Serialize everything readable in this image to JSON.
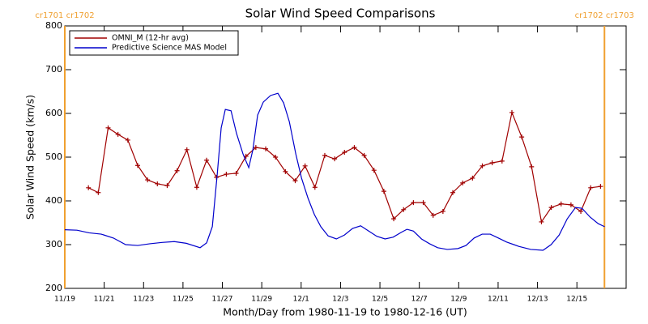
{
  "chart_data": {
    "type": "line",
    "title": "Solar Wind Speed Comparisons",
    "x_label": "Month/Day from 1980-11-19 to 1980-12-16 (UT)",
    "y_label": "Solar Wind Speed (km/s)",
    "xlim": [
      0,
      28.5
    ],
    "ylim": [
      200,
      800
    ],
    "xticks": [
      {
        "value": 0,
        "label": "11/19"
      },
      {
        "value": 2,
        "label": "11/21"
      },
      {
        "value": 4,
        "label": "11/23"
      },
      {
        "value": 6,
        "label": "11/25"
      },
      {
        "value": 8,
        "label": "11/27"
      },
      {
        "value": 10,
        "label": "11/29"
      },
      {
        "value": 12,
        "label": "12/1"
      },
      {
        "value": 14,
        "label": "12/3"
      },
      {
        "value": 16,
        "label": "12/5"
      },
      {
        "value": 18,
        "label": "12/7"
      },
      {
        "value": 20,
        "label": "12/9"
      },
      {
        "value": 22,
        "label": "12/11"
      },
      {
        "value": 24,
        "label": "12/13"
      },
      {
        "value": 26,
        "label": "12/15"
      }
    ],
    "yticks": [
      200,
      300,
      400,
      500,
      600,
      700,
      800
    ],
    "legend": "upper left",
    "annotations": [
      {
        "text": "cr1701 cr1702",
        "x": 0,
        "color": "#f0a030"
      },
      {
        "text": "cr1702 cr1703",
        "x": 27.4,
        "color": "#f0a030"
      }
    ],
    "series": [
      {
        "name": "OMNI_M (12-hr avg)",
        "color": "#a00000",
        "markers": true,
        "x": [
          1.2,
          1.7,
          2.2,
          2.7,
          3.2,
          3.7,
          4.2,
          4.7,
          5.2,
          5.7,
          6.2,
          6.7,
          7.2,
          7.7,
          8.2,
          8.7,
          9.2,
          9.7,
          10.2,
          10.7,
          11.2,
          11.7,
          12.2,
          12.7,
          13.2,
          13.7,
          14.2,
          14.7,
          15.2,
          15.7,
          16.2,
          16.7,
          17.2,
          17.7,
          18.2,
          18.7,
          19.2,
          19.7,
          20.2,
          20.7,
          21.2,
          21.7,
          22.2,
          22.7,
          23.2,
          23.7,
          24.2,
          24.7,
          25.2,
          25.7,
          26.2,
          26.7,
          27.2
        ],
        "values": [
          430,
          419,
          567,
          552,
          539,
          481,
          448,
          439,
          435,
          469,
          517,
          431,
          493,
          454,
          461,
          463,
          502,
          522,
          519,
          500,
          467,
          446,
          480,
          431,
          504,
          496,
          511,
          522,
          504,
          470,
          422,
          359,
          380,
          396,
          396,
          367,
          376,
          419,
          441,
          452,
          480,
          487,
          491,
          602,
          546,
          478,
          352,
          385,
          393,
          391,
          376,
          430,
          433
        ]
      },
      {
        "name": "Predictive Science MAS Model",
        "color": "#0000cc",
        "markers": false,
        "x": [
          0,
          0.62,
          1.23,
          1.85,
          2.47,
          3.09,
          3.7,
          4.32,
          4.94,
          5.56,
          6.17,
          6.87,
          7.2,
          7.49,
          7.74,
          7.94,
          8.15,
          8.44,
          8.72,
          9.05,
          9.34,
          9.55,
          9.79,
          10.08,
          10.45,
          10.82,
          11.11,
          11.4,
          11.73,
          12.02,
          12.35,
          12.67,
          13.0,
          13.37,
          13.79,
          14.2,
          14.61,
          15.02,
          15.43,
          15.84,
          16.26,
          16.67,
          17.08,
          17.37,
          17.7,
          18.11,
          18.52,
          18.93,
          19.42,
          19.96,
          20.37,
          20.78,
          21.19,
          21.6,
          22.02,
          22.43,
          23.05,
          23.66,
          24.28,
          24.69,
          25.1,
          25.51,
          25.93,
          26.26,
          26.67,
          27.08,
          27.41
        ],
        "values": [
          334,
          333,
          327,
          324,
          315,
          300,
          298,
          302,
          305,
          307,
          303,
          293,
          304,
          341,
          461,
          567,
          609,
          606,
          554,
          507,
          476,
          517,
          596,
          626,
          641,
          646,
          624,
          581,
          507,
          452,
          406,
          369,
          341,
          320,
          313,
          322,
          337,
          343,
          331,
          319,
          313,
          317,
          328,
          335,
          331,
          313,
          302,
          293,
          289,
          291,
          298,
          315,
          324,
          324,
          315,
          306,
          296,
          289,
          287,
          300,
          322,
          359,
          385,
          383,
          363,
          348,
          341
        ]
      }
    ]
  }
}
